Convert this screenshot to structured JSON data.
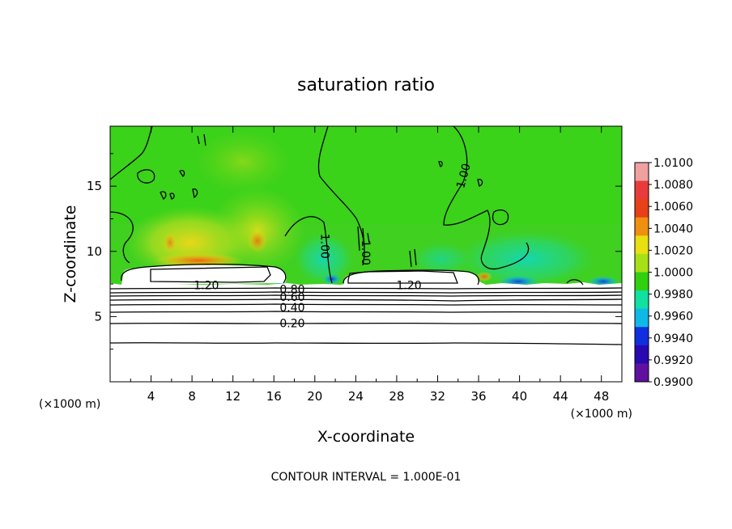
{
  "chart_data": {
    "type": "heatmap",
    "title": "saturation ratio",
    "xlabel": "X-coordinate",
    "ylabel": "Z-coordinate",
    "x_unit": "(×1000 m)",
    "y_unit": "(×1000 m)",
    "xlim": [
      0,
      50
    ],
    "ylim": [
      0,
      19.6
    ],
    "x_ticks": [
      4,
      8,
      12,
      16,
      20,
      24,
      28,
      32,
      36,
      40,
      44,
      48
    ],
    "y_ticks": [
      5,
      10,
      15
    ],
    "colorbar": {
      "range": [
        0.99,
        1.01
      ],
      "labels": [
        "1.0100",
        "1.0080",
        "1.0060",
        "1.0040",
        "1.0020",
        "1.0000",
        "0.9980",
        "0.9960",
        "0.9940",
        "0.9920",
        "0.9900"
      ],
      "colors": [
        "#f0a0a0",
        "#e83c3c",
        "#e84018",
        "#f09010",
        "#e8e010",
        "#a8e018",
        "#30d010",
        "#10e0a0",
        "#10b8e8",
        "#1030e0",
        "#2808b0",
        "#6010a0"
      ]
    },
    "contour_labels": [
      {
        "text": "1.20",
        "x": 9.4,
        "z": 7.4
      },
      {
        "text": "1.20",
        "x": 29.2,
        "z": 7.4
      },
      {
        "text": "0.80",
        "x": 17.8,
        "z": 7.1
      },
      {
        "text": "0.60",
        "x": 17.8,
        "z": 6.5
      },
      {
        "text": "0.40",
        "x": 17.8,
        "z": 5.7
      },
      {
        "text": "0.20",
        "x": 17.8,
        "z": 4.5
      },
      {
        "text": "1.00",
        "x": 21.0,
        "z": 10.4
      },
      {
        "text": "1.00",
        "x": 25.0,
        "z": 9.9
      },
      {
        "text": "1.00",
        "x": 34.5,
        "z": 15.8
      }
    ],
    "footnote": "CONTOUR INTERVAL = 1.000E-01"
  }
}
